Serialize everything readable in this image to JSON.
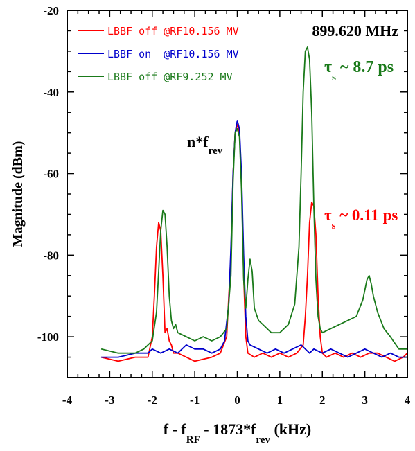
{
  "chart_data": {
    "type": "line",
    "title": "",
    "xlabel": {
      "parts": [
        {
          "text": "f - f",
          "sub": false
        },
        {
          "text": "RF",
          "sub": true
        },
        {
          "text": " - 1873*f",
          "sub": false
        },
        {
          "text": "rev",
          "sub": true
        },
        {
          "text": " (kHz)",
          "sub": false
        }
      ]
    },
    "ylabel": "Magnitude (dBm)",
    "xlim": [
      -4,
      4
    ],
    "ylim": [
      -110,
      -20
    ],
    "x_ticks": [
      -4,
      -3,
      -2,
      -1,
      0,
      1,
      2,
      3,
      4
    ],
    "y_ticks": [
      -100,
      -80,
      -60,
      -40,
      -20
    ],
    "grid": false,
    "legend_position": "top-left",
    "series": [
      {
        "name": "LBBF off @RF10.156 MV",
        "color": "#ff0000",
        "x": [
          -3.2,
          -2.8,
          -2.4,
          -2.1,
          -2.0,
          -1.95,
          -1.9,
          -1.85,
          -1.8,
          -1.75,
          -1.7,
          -1.65,
          -1.6,
          -1.55,
          -1.5,
          -1.4,
          -1.2,
          -1.0,
          -0.6,
          -0.4,
          -0.25,
          -0.15,
          -0.1,
          -0.05,
          0.0,
          0.05,
          0.1,
          0.15,
          0.2,
          0.25,
          0.4,
          0.6,
          0.8,
          1.0,
          1.2,
          1.4,
          1.55,
          1.6,
          1.65,
          1.7,
          1.75,
          1.8,
          1.85,
          1.9,
          1.95,
          2.0,
          2.1,
          2.3,
          2.5,
          2.7,
          2.9,
          3.1,
          3.3,
          3.5,
          3.7,
          3.9,
          4.0
        ],
        "y": [
          -105,
          -106,
          -105,
          -105,
          -100,
          -90,
          -78,
          -72,
          -74,
          -85,
          -99,
          -98,
          -101,
          -102,
          -104,
          -104,
          -105,
          -106,
          -105,
          -104,
          -100,
          -80,
          -60,
          -50,
          -48,
          -50,
          -62,
          -85,
          -100,
          -104,
          -105,
          -104,
          -105,
          -104,
          -105,
          -104,
          -102,
          -95,
          -85,
          -72,
          -67,
          -68,
          -75,
          -90,
          -100,
          -104,
          -105,
          -104,
          -105,
          -104,
          -105,
          -104,
          -104,
          -105,
          -106,
          -105,
          -104
        ]
      },
      {
        "name": "LBBF on  @RF10.156 MV",
        "color": "#0000cc",
        "x": [
          -3.2,
          -2.8,
          -2.4,
          -2.1,
          -2.0,
          -1.8,
          -1.6,
          -1.4,
          -1.2,
          -1.0,
          -0.8,
          -0.6,
          -0.4,
          -0.3,
          -0.2,
          -0.15,
          -0.1,
          -0.05,
          0.0,
          0.05,
          0.1,
          0.15,
          0.2,
          0.25,
          0.3,
          0.5,
          0.7,
          0.9,
          1.1,
          1.3,
          1.5,
          1.6,
          1.7,
          1.8,
          2.0,
          2.2,
          2.4,
          2.6,
          2.8,
          3.0,
          3.2,
          3.4,
          3.6,
          3.8,
          4.0
        ],
        "y": [
          -105,
          -105,
          -104,
          -104,
          -103,
          -104,
          -103,
          -104,
          -102,
          -103,
          -103,
          -104,
          -103,
          -101,
          -92,
          -78,
          -60,
          -50,
          -47,
          -49,
          -60,
          -80,
          -95,
          -101,
          -102,
          -103,
          -104,
          -103,
          -104,
          -103,
          -102,
          -103,
          -104,
          -103,
          -104,
          -103,
          -104,
          -105,
          -104,
          -103,
          -104,
          -105,
          -104,
          -105,
          -105
        ]
      },
      {
        "name": "LBBF off @RF9.252 MV",
        "color": "#1a7a1a",
        "x": [
          -3.2,
          -2.8,
          -2.4,
          -2.2,
          -2.0,
          -1.9,
          -1.85,
          -1.8,
          -1.75,
          -1.7,
          -1.65,
          -1.6,
          -1.55,
          -1.5,
          -1.45,
          -1.4,
          -1.2,
          -1.0,
          -0.8,
          -0.6,
          -0.4,
          -0.25,
          -0.15,
          -0.1,
          -0.05,
          0.0,
          0.05,
          0.1,
          0.15,
          0.2,
          0.25,
          0.3,
          0.35,
          0.4,
          0.5,
          0.6,
          0.8,
          1.0,
          1.2,
          1.35,
          1.45,
          1.5,
          1.55,
          1.6,
          1.65,
          1.7,
          1.75,
          1.8,
          1.85,
          1.9,
          1.95,
          2.0,
          2.2,
          2.4,
          2.6,
          2.8,
          2.95,
          3.05,
          3.1,
          3.15,
          3.2,
          3.3,
          3.45,
          3.6,
          3.8,
          4.0
        ],
        "y": [
          -103,
          -104,
          -104,
          -103,
          -101,
          -94,
          -84,
          -74,
          -69,
          -70,
          -78,
          -90,
          -96,
          -98,
          -97,
          -99,
          -100,
          -101,
          -100,
          -101,
          -100,
          -98,
          -85,
          -62,
          -50,
          -49,
          -51,
          -64,
          -86,
          -93,
          -86,
          -81,
          -84,
          -93,
          -96,
          -97,
          -99,
          -99,
          -97,
          -92,
          -78,
          -60,
          -40,
          -30,
          -29,
          -32,
          -45,
          -68,
          -86,
          -95,
          -98,
          -99,
          -98,
          -97,
          -96,
          -95,
          -91,
          -86,
          -85,
          -87,
          -90,
          -94,
          -98,
          -100,
          -103,
          -103
        ]
      }
    ],
    "annotations": [
      {
        "id": "freq",
        "text": "899.620 MHz",
        "color": "#000000"
      },
      {
        "id": "nfrev",
        "text": "n*f",
        "sub": "rev",
        "color": "#000000"
      },
      {
        "id": "tau_green",
        "symbol": "τ",
        "sub": "s",
        "text": "~ 8.7 ps",
        "color": "#1a7a1a"
      },
      {
        "id": "tau_red",
        "symbol": "τ",
        "sub": "s",
        "text": "~ 0.11 ps",
        "color": "#ff0000"
      }
    ]
  }
}
